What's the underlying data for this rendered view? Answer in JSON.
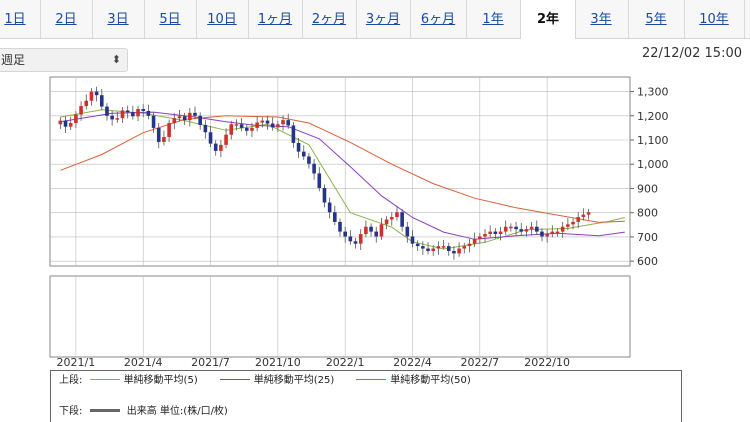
{
  "tabs": [
    {
      "label": "1日",
      "active": false
    },
    {
      "label": "2日",
      "active": false
    },
    {
      "label": "3日",
      "active": false
    },
    {
      "label": "5日",
      "active": false
    },
    {
      "label": "10日",
      "active": false
    },
    {
      "label": "1ヶ月",
      "active": false
    },
    {
      "label": "2ヶ月",
      "active": false
    },
    {
      "label": "3ヶ月",
      "active": false
    },
    {
      "label": "6ヶ月",
      "active": false
    },
    {
      "label": "1年",
      "active": false
    },
    {
      "label": "2年",
      "active": true
    },
    {
      "label": "3年",
      "active": false
    },
    {
      "label": "5年",
      "active": false
    },
    {
      "label": "10年",
      "active": false
    }
  ],
  "period_select": {
    "value": "週足",
    "icon": "updown-chevron-icon"
  },
  "datetime": "22/12/02 15:00",
  "legend": {
    "upper_label": "上段:",
    "lower_label": "下段:",
    "lower_text": "出来高 単位:(株/口/枚)",
    "volume_color": "#666666"
  },
  "colors": {
    "up": "#d0302a",
    "down": "#24348a",
    "grid": "#bbbbbb"
  },
  "chart_data": {
    "type": "candlestick",
    "ylim": [
      580,
      1360
    ],
    "y_ticks": [
      "600",
      "700",
      "800",
      "900",
      "1,000",
      "1,100",
      "1,200",
      "1,300"
    ],
    "x_tick_labels": [
      "2021/1",
      "2021/4",
      "2021/7",
      "2021/10",
      "2022/1",
      "2022/4",
      "2022/7",
      "2022/10"
    ],
    "x_tick_weeks": [
      5,
      18,
      31,
      44,
      57,
      70,
      83,
      96
    ],
    "total_weeks": 112,
    "first_week": 2,
    "closes": [
      1180,
      1155,
      1170,
      1205,
      1240,
      1262,
      1300,
      1285,
      1238,
      1200,
      1185,
      1190,
      1222,
      1215,
      1198,
      1228,
      1220,
      1200,
      1150,
      1092,
      1112,
      1170,
      1190,
      1198,
      1182,
      1212,
      1200,
      1162,
      1132,
      1085,
      1055,
      1080,
      1122,
      1165,
      1165,
      1150,
      1138,
      1150,
      1172,
      1180,
      1168,
      1152,
      1165,
      1182,
      1160,
      1088,
      1052,
      1032,
      1002,
      962,
      902,
      842,
      802,
      762,
      722,
      702,
      682,
      672,
      712,
      742,
      722,
      702,
      752,
      772,
      782,
      802,
      742,
      702,
      672,
      662,
      652,
      642,
      652,
      662,
      662,
      642,
      632,
      652,
      662,
      672,
      692,
      702,
      712,
      722,
      712,
      722,
      742,
      742,
      732,
      722,
      732,
      742,
      722,
      702,
      712,
      722,
      722,
      742,
      752,
      762,
      782,
      792,
      802
    ],
    "series": [
      {
        "name": "単純移動平均(5)",
        "color": "#8cb34a",
        "points": [
          [
            2,
            1195
          ],
          [
            10,
            1225
          ],
          [
            18,
            1210
          ],
          [
            26,
            1180
          ],
          [
            34,
            1140
          ],
          [
            42,
            1165
          ],
          [
            50,
            1080
          ],
          [
            58,
            800
          ],
          [
            66,
            740
          ],
          [
            70,
            680
          ],
          [
            76,
            650
          ],
          [
            84,
            678
          ],
          [
            92,
            730
          ],
          [
            100,
            735
          ],
          [
            108,
            765
          ],
          [
            111,
            780
          ]
        ]
      },
      {
        "name": "単純移動平均(25)",
        "color": "#8b3fbf",
        "points": [
          [
            2,
            1175
          ],
          [
            12,
            1210
          ],
          [
            20,
            1215
          ],
          [
            28,
            1195
          ],
          [
            34,
            1175
          ],
          [
            40,
            1160
          ],
          [
            46,
            1155
          ],
          [
            52,
            1105
          ],
          [
            58,
            990
          ],
          [
            64,
            870
          ],
          [
            70,
            780
          ],
          [
            76,
            720
          ],
          [
            82,
            690
          ],
          [
            90,
            705
          ],
          [
            98,
            715
          ],
          [
            106,
            705
          ],
          [
            111,
            720
          ]
        ]
      },
      {
        "name": "単純移動平均(50)",
        "color": "#d9613a",
        "points": [
          [
            2,
            975
          ],
          [
            10,
            1040
          ],
          [
            18,
            1130
          ],
          [
            26,
            1185
          ],
          [
            34,
            1200
          ],
          [
            44,
            1195
          ],
          [
            50,
            1170
          ],
          [
            58,
            1090
          ],
          [
            66,
            1000
          ],
          [
            74,
            920
          ],
          [
            82,
            860
          ],
          [
            90,
            820
          ],
          [
            98,
            790
          ],
          [
            106,
            760
          ],
          [
            111,
            765
          ]
        ]
      }
    ]
  }
}
